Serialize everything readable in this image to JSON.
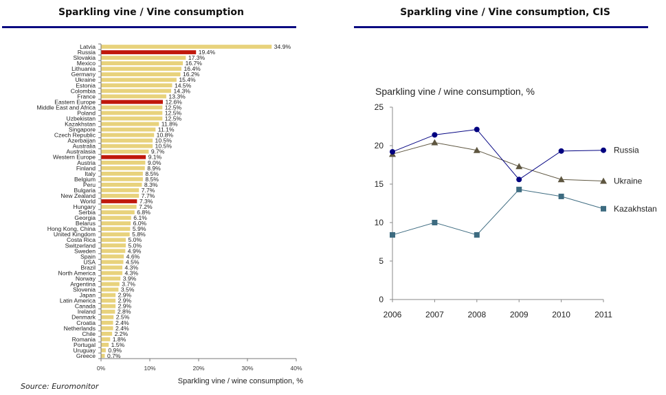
{
  "left_panel": {
    "title": "Sparkling vine / Vine consumption",
    "source": "Source: Euromonitor"
  },
  "right_panel": {
    "title": "Sparkling vine / Vine consumption, CIS"
  },
  "colors": {
    "bar_default": "#e8d27c",
    "bar_highlight": "#c0180c",
    "title_rule": "#0a0a80",
    "russia": "#000080",
    "ukraine": "#5e5640",
    "kazakhstan": "#3d6b80"
  },
  "chart_data": [
    {
      "type": "bar",
      "orientation": "horizontal",
      "title": "",
      "xlabel": "Sparkling vine / wine consumption, %",
      "ylabel": "",
      "xlim": [
        0,
        40
      ],
      "xticks": [
        "0%",
        "10%",
        "20%",
        "30%",
        "40%"
      ],
      "value_suffix": "%",
      "highlighted": [
        "Russia",
        "Eastern Europe",
        "Western Europe",
        "World"
      ],
      "categories": [
        "Latvia",
        "Russia",
        "Slovakia",
        "Mexico",
        "Lithuania",
        "Germany",
        "Ukraine",
        "Estonia",
        "Colombia",
        "France",
        "Eastern Europe",
        "Middle East and Africa",
        "Poland",
        "Uzbekistan",
        "Kazakhstan",
        "Singapore",
        "Czech Republic",
        "Azerbaijan",
        "Australia",
        "Australasia",
        "Western Europe",
        "Austria",
        "Finland",
        "Italy",
        "Belgium",
        "Peru",
        "Bulgaria",
        "New Zealand",
        "World",
        "Hungary",
        "Serbia",
        "Georgia",
        "Belarus",
        "Hong Kong, China",
        "United Kingdom",
        "Costa Rica",
        "Switzerland",
        "Sweden",
        "Spain",
        "USA",
        "Brazil",
        "North America",
        "Norway",
        "Argentina",
        "Slovenia",
        "Japan",
        "Latin America",
        "Canada",
        "Ireland",
        "Denmark",
        "Croatia",
        "Netherlands",
        "Chile",
        "Romania",
        "Portugal",
        "Uruguay",
        "Greece"
      ],
      "values": [
        34.9,
        19.4,
        17.3,
        16.7,
        16.4,
        16.2,
        15.4,
        14.5,
        14.3,
        13.3,
        12.6,
        12.5,
        12.5,
        12.5,
        11.8,
        11.1,
        10.8,
        10.5,
        10.5,
        9.7,
        9.1,
        9.0,
        8.9,
        8.5,
        8.5,
        8.3,
        7.7,
        7.7,
        7.3,
        7.2,
        6.8,
        6.1,
        6.0,
        5.9,
        5.8,
        5.0,
        5.0,
        4.9,
        4.6,
        4.5,
        4.3,
        4.3,
        3.9,
        3.7,
        3.5,
        2.9,
        2.9,
        2.9,
        2.8,
        2.5,
        2.4,
        2.4,
        2.2,
        1.8,
        1.5,
        0.9,
        0.7
      ],
      "grid": false,
      "legend": "none"
    },
    {
      "type": "line",
      "title": "Sparkling vine / wine consumption, %",
      "xlabel": "",
      "ylabel": "",
      "x": [
        "2006",
        "2007",
        "2008",
        "2009",
        "2010",
        "2011"
      ],
      "ylim": [
        0,
        25
      ],
      "yticks": [
        "0",
        "5",
        "10",
        "15",
        "20",
        "25"
      ],
      "series": [
        {
          "name": "Russia",
          "marker": "circle",
          "values": [
            19.2,
            21.4,
            22.1,
            15.6,
            19.3,
            19.4
          ]
        },
        {
          "name": "Ukraine",
          "marker": "triangle",
          "values": [
            18.9,
            20.4,
            19.4,
            17.3,
            15.6,
            15.4
          ]
        },
        {
          "name": "Kazakhstan",
          "marker": "square",
          "values": [
            8.4,
            10.0,
            8.4,
            14.3,
            13.4,
            11.8
          ]
        }
      ],
      "grid": false,
      "legend": "right, end-of-line labels"
    }
  ]
}
